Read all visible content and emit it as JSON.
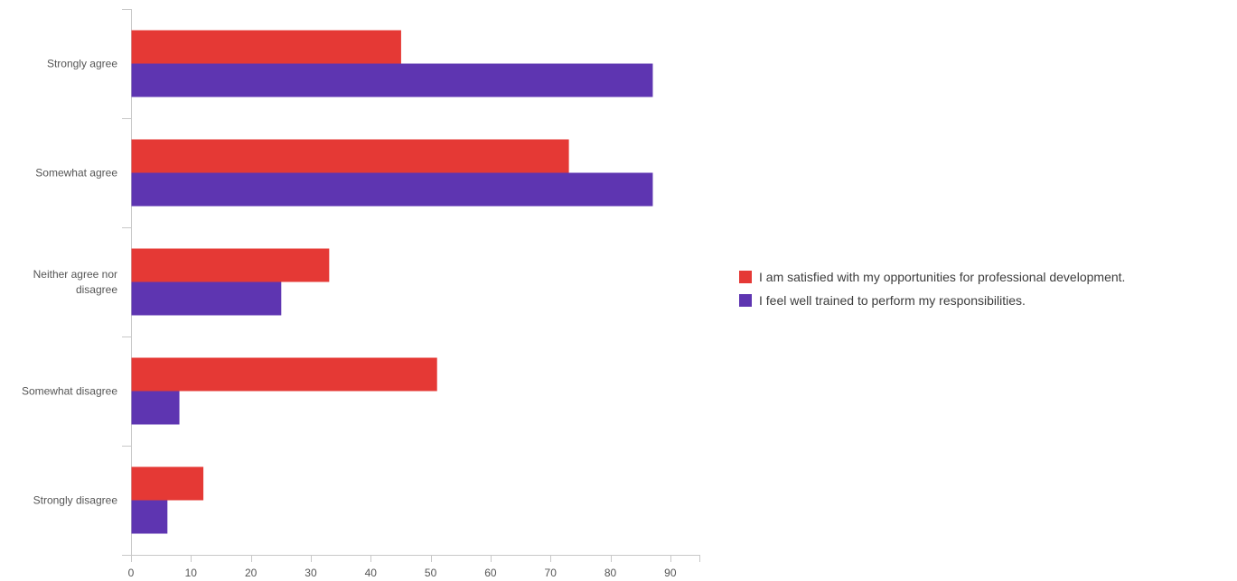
{
  "chart_data": {
    "type": "bar",
    "orientation": "horizontal",
    "categories": [
      "Strongly agree",
      "Somewhat agree",
      "Neither agree nor disagree",
      "Somewhat disagree",
      "Strongly disagree"
    ],
    "category_lines": [
      [
        "Strongly agree"
      ],
      [
        "Somewhat agree"
      ],
      [
        "Neither agree nor",
        "disagree"
      ],
      [
        "Somewhat disagree"
      ],
      [
        "Strongly disagree"
      ]
    ],
    "series": [
      {
        "name": "I am satisfied with my opportunities for professional development.",
        "color": "#e53935",
        "values": [
          45,
          73,
          33,
          51,
          12
        ]
      },
      {
        "name": "I feel well trained to perform my responsibilities.",
        "color": "#5e35b1",
        "values": [
          87,
          87,
          25,
          8,
          6
        ]
      }
    ],
    "xlim": [
      0,
      95
    ],
    "xticks": [
      0,
      10,
      20,
      30,
      40,
      50,
      60,
      70,
      80,
      90
    ],
    "grid": false,
    "legend_position": "right",
    "title": "",
    "xlabel": "",
    "ylabel": ""
  }
}
